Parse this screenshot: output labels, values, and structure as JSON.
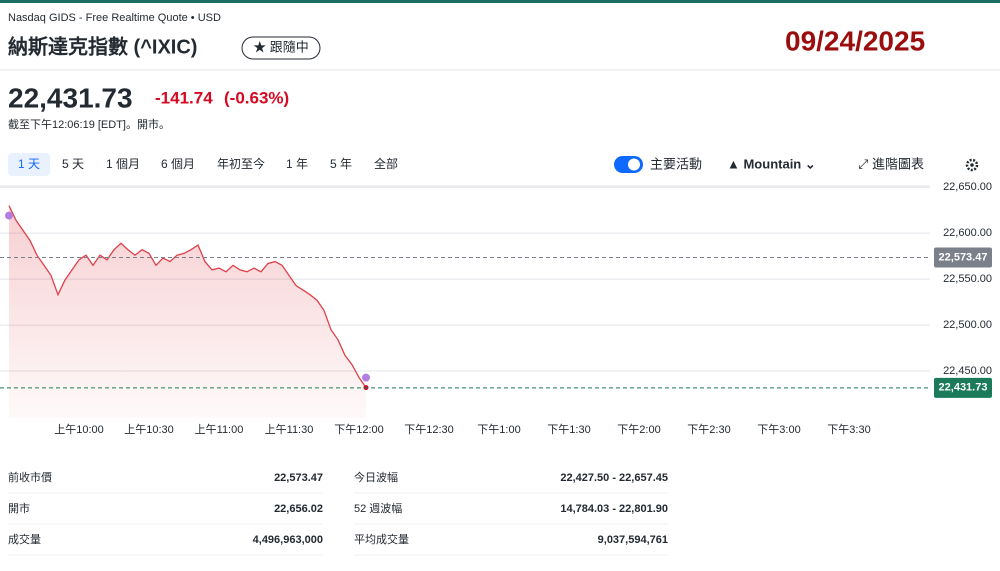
{
  "header": {
    "source": "Nasdaq GIDS - Free Realtime Quote • USD",
    "title": "納斯達克指數 (^IXIC)",
    "follow_button": "★ 跟隨中",
    "date": "09/24/2025"
  },
  "quote": {
    "price": "22,431.73",
    "change": "-141.74",
    "change_pct": "(-0.63%)",
    "time": "截至下午12:06:19 [EDT]。開市。"
  },
  "tabs": [
    "1 天",
    "5 天",
    "1 個月",
    "6 個月",
    "年初至今",
    "1 年",
    "5 年",
    "全部"
  ],
  "toolbar": {
    "toggle": "主要活動",
    "chart_style": "▲ Mountain ⌄",
    "advanced": "⤢ 進階圖表"
  },
  "chart_data": {
    "type": "area",
    "x": [
      570,
      573,
      576,
      579,
      582,
      585,
      588,
      591,
      594,
      597,
      600,
      603,
      606,
      609,
      612,
      615,
      618,
      621,
      624,
      627,
      630,
      633,
      636,
      639,
      642,
      645,
      648,
      651,
      654,
      657,
      660,
      663,
      666,
      669,
      672,
      675,
      678,
      681,
      684,
      687,
      690,
      693,
      696,
      699,
      702,
      705,
      708,
      711,
      714,
      717,
      720,
      723
    ],
    "series": [
      {
        "color": "#e0404a",
        "values": [
          22630,
          22614,
          22603,
          22592,
          22576,
          22565,
          22554,
          22533,
          22549,
          22560,
          22571,
          22576,
          22565,
          22576,
          22571,
          22582,
          22589,
          22582,
          22576,
          22582,
          22578,
          22565,
          22573,
          22569,
          22576,
          22578,
          22582,
          22587,
          22569,
          22560,
          22562,
          22558,
          22565,
          22560,
          22558,
          22562,
          22558,
          22567,
          22569,
          22565,
          22554,
          22543,
          22538,
          22533,
          22527,
          22516,
          22495,
          22484,
          22467,
          22457,
          22443,
          22432
        ]
      }
    ],
    "xlim": [
      570,
      960
    ],
    "xticks": [
      {
        "value": 600,
        "label": "上午10:00"
      },
      {
        "value": 630,
        "label": "上午10:30"
      },
      {
        "value": 660,
        "label": "上午11:00"
      },
      {
        "value": 690,
        "label": "上午11:30"
      },
      {
        "value": 720,
        "label": "下午12:00"
      },
      {
        "value": 750,
        "label": "下午12:30"
      },
      {
        "value": 780,
        "label": "下午1:00"
      },
      {
        "value": 810,
        "label": "下午1:30"
      },
      {
        "value": 840,
        "label": "下午2:00"
      },
      {
        "value": 870,
        "label": "下午2:30"
      },
      {
        "value": 900,
        "label": "下午3:00"
      },
      {
        "value": 930,
        "label": "下午3:30"
      }
    ],
    "ylim": [
      22420,
      22660
    ],
    "yticks": [
      {
        "value": 22450,
        "label": "22,450.00"
      },
      {
        "value": 22500,
        "label": "22,500.00"
      },
      {
        "value": 22550,
        "label": "22,550.00"
      },
      {
        "value": 22600,
        "label": "22,600.00"
      },
      {
        "value": 22650,
        "label": "22,650.00"
      }
    ],
    "grid": true,
    "reference_lines": [
      {
        "value": 22573.47,
        "label": "22,573.47",
        "color": "#7a7f8a"
      },
      {
        "value": 22431.73,
        "label": "22,431.73",
        "color": "#1a7a5a"
      }
    ]
  },
  "stats": {
    "rows": [
      [
        "前收市價",
        "22,573.47",
        "今日波幅",
        "22,427.50 - 22,657.45"
      ],
      [
        "開市",
        "22,656.02",
        "52 週波幅",
        "14,784.03 - 22,801.90"
      ],
      [
        "成交量",
        "4,496,963,000",
        "平均成交量",
        "9,037,594,761"
      ]
    ]
  }
}
